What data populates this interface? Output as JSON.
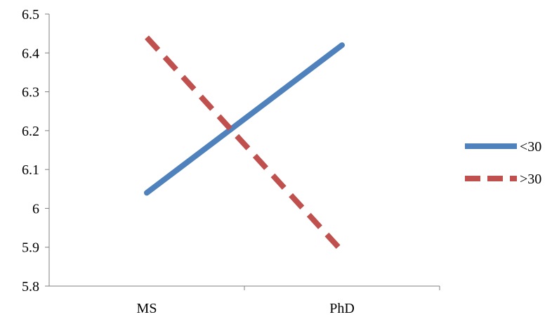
{
  "chart_data": {
    "type": "line",
    "categories": [
      "MS",
      "PhD"
    ],
    "series": [
      {
        "name": "<30",
        "values": [
          6.04,
          6.42
        ],
        "color": "#4F81BD",
        "dash": "solid"
      },
      {
        "name": ">30",
        "values": [
          6.44,
          5.89
        ],
        "color": "#C0504D",
        "dash": "dashed"
      }
    ],
    "ylim": [
      5.8,
      6.5
    ],
    "yticks": [
      "5.8",
      "5.9",
      "6",
      "6.1",
      "6.2",
      "6.3",
      "6.4",
      "6.5"
    ],
    "grid": false,
    "legend_position": "right"
  }
}
